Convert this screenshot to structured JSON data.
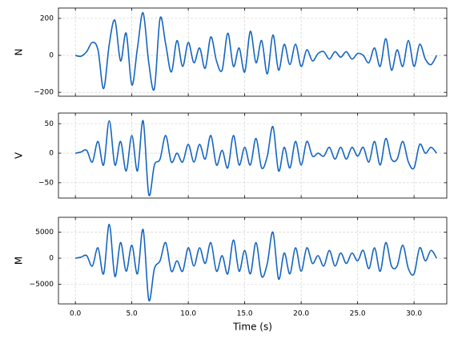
{
  "chart_data": [
    {
      "type": "line",
      "ylabel": "N",
      "color": "#1565c0",
      "grid": true,
      "xlim": [
        -1.5,
        32.9
      ],
      "ylim": [
        -221,
        256
      ],
      "xticks": [
        0,
        5,
        10,
        15,
        20,
        25,
        30
      ],
      "yticks": [
        {
          "value": -200,
          "label": "−200"
        },
        0,
        200
      ],
      "x": [
        0,
        0.5,
        1,
        1.5,
        2,
        2.5,
        3,
        3.5,
        4,
        4.5,
        5,
        5.5,
        6,
        6.5,
        7,
        7.5,
        8,
        8.5,
        9,
        9.5,
        10,
        10.5,
        11,
        11.5,
        12,
        12.5,
        13,
        13.5,
        14,
        14.5,
        15,
        15.5,
        16,
        16.5,
        17,
        17.5,
        18,
        18.5,
        19,
        19.5,
        20,
        20.5,
        21,
        21.5,
        22,
        22.5,
        23,
        23.5,
        24,
        24.5,
        25,
        25.5,
        26,
        26.5,
        27,
        27.5,
        28,
        28.5,
        29,
        29.5,
        30,
        30.5,
        31,
        31.5,
        32
      ],
      "values": [
        0,
        -5,
        20,
        70,
        30,
        -180,
        60,
        190,
        -30,
        120,
        -160,
        40,
        230,
        -40,
        -180,
        200,
        60,
        -90,
        80,
        -60,
        70,
        -40,
        40,
        -70,
        100,
        -30,
        -80,
        120,
        -60,
        40,
        -90,
        130,
        -40,
        80,
        -100,
        110,
        -80,
        60,
        -50,
        60,
        -60,
        30,
        -30,
        10,
        20,
        -20,
        20,
        -10,
        20,
        -20,
        10,
        0,
        -40,
        40,
        -60,
        90,
        -80,
        30,
        -60,
        80,
        -60,
        60,
        -20,
        -50,
        0
      ]
    },
    {
      "type": "line",
      "ylabel": "V",
      "color": "#1565c0",
      "grid": true,
      "xlim": [
        -1.5,
        32.9
      ],
      "ylim": [
        -76,
        68
      ],
      "xticks": [
        0,
        5,
        10,
        15,
        20,
        25,
        30
      ],
      "yticks": [
        {
          "value": -50,
          "label": "−50"
        },
        0,
        50
      ],
      "x": [
        0,
        0.5,
        1,
        1.5,
        2,
        2.5,
        3,
        3.5,
        4,
        4.5,
        5,
        5.5,
        6,
        6.5,
        7,
        7.5,
        8,
        8.5,
        9,
        9.5,
        10,
        10.5,
        11,
        11.5,
        12,
        12.5,
        13,
        13.5,
        14,
        14.5,
        15,
        15.5,
        16,
        16.5,
        17,
        17.5,
        18,
        18.5,
        19,
        19.5,
        20,
        20.5,
        21,
        21.5,
        22,
        22.5,
        23,
        23.5,
        24,
        24.5,
        25,
        25.5,
        26,
        26.5,
        27,
        27.5,
        28,
        28.5,
        29,
        29.5,
        30,
        30.5,
        31,
        31.5,
        32
      ],
      "values": [
        0,
        2,
        5,
        -15,
        20,
        -20,
        55,
        -20,
        20,
        -30,
        30,
        -30,
        55,
        -70,
        -20,
        -10,
        30,
        -15,
        0,
        -15,
        15,
        -15,
        15,
        -10,
        30,
        -20,
        5,
        -25,
        30,
        -20,
        10,
        -20,
        25,
        -25,
        -5,
        45,
        -30,
        10,
        -25,
        20,
        -20,
        20,
        -5,
        0,
        -5,
        10,
        -10,
        10,
        -10,
        10,
        -5,
        10,
        -15,
        20,
        -20,
        25,
        -10,
        -10,
        20,
        -15,
        -25,
        15,
        0,
        10,
        0
      ]
    },
    {
      "type": "line",
      "ylabel": "M",
      "xlabel": "Time (s)",
      "color": "#1565c0",
      "grid": true,
      "xlim": [
        -1.5,
        32.9
      ],
      "ylim": [
        -8770,
        7850
      ],
      "xticks": [
        {
          "value": 0,
          "label": "0.0"
        },
        {
          "value": 5,
          "label": "5.0"
        },
        {
          "value": 10,
          "label": "10.0"
        },
        {
          "value": 15,
          "label": "15.0"
        },
        {
          "value": 20,
          "label": "20.0"
        },
        {
          "value": 25,
          "label": "25.0"
        },
        {
          "value": 30,
          "label": "30.0"
        }
      ],
      "yticks": [
        {
          "value": -5000,
          "label": "−5000"
        },
        0,
        5000
      ],
      "x": [
        0,
        0.5,
        1,
        1.5,
        2,
        2.5,
        3,
        3.5,
        4,
        4.5,
        5,
        5.5,
        6,
        6.5,
        7,
        7.5,
        8,
        8.5,
        9,
        9.5,
        10,
        10.5,
        11,
        11.5,
        12,
        12.5,
        13,
        13.5,
        14,
        14.5,
        15,
        15.5,
        16,
        16.5,
        17,
        17.5,
        18,
        18.5,
        19,
        19.5,
        20,
        20.5,
        21,
        21.5,
        22,
        22.5,
        23,
        23.5,
        24,
        24.5,
        25,
        25.5,
        26,
        26.5,
        27,
        27.5,
        28,
        28.5,
        29,
        29.5,
        30,
        30.5,
        31,
        31.5,
        32
      ],
      "values": [
        0,
        200,
        500,
        -1500,
        2000,
        -3000,
        6500,
        -3500,
        3000,
        -2500,
        2500,
        -3000,
        5500,
        -8000,
        -2000,
        -500,
        3000,
        -2500,
        -500,
        -2500,
        2000,
        -1500,
        2000,
        -1000,
        3000,
        -2500,
        500,
        -3000,
        3500,
        -2500,
        1500,
        -3000,
        3000,
        -3500,
        -1000,
        5000,
        -4000,
        1000,
        -3000,
        2000,
        -2500,
        2000,
        -1000,
        500,
        -1500,
        1500,
        -1500,
        1000,
        -1000,
        1000,
        -500,
        1500,
        -2000,
        2000,
        -2500,
        3000,
        -1500,
        -1500,
        2500,
        -2000,
        -3000,
        2000,
        -500,
        1500,
        0
      ]
    }
  ]
}
